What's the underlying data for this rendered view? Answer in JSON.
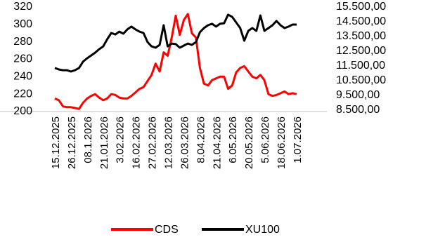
{
  "chart_data": {
    "type": "line",
    "categories": [
      "15.12.2025",
      null,
      null,
      null,
      "26.12.2025",
      null,
      null,
      null,
      "08.1.2026",
      null,
      null,
      null,
      "21.01.2026",
      null,
      null,
      null,
      "3.02.2026",
      null,
      null,
      null,
      "16.02.2026",
      null,
      null,
      null,
      "27.02.2026",
      null,
      null,
      null,
      "12.03.2026",
      null,
      null,
      null,
      "26.03.2026",
      null,
      null,
      null,
      "8.04.2026",
      null,
      null,
      null,
      "21.04.2026",
      null,
      null,
      null,
      "6.05.2026",
      null,
      null,
      null,
      "20.05.2026",
      null,
      null,
      null,
      "5.06.2026",
      null,
      null,
      null,
      "18.06.2026",
      null,
      null,
      null,
      "1.07.2026"
    ],
    "series": [
      {
        "name": "CDS",
        "color": "#ff0000",
        "values": [
          215,
          213,
          206,
          205,
          205,
          204,
          203,
          210,
          215,
          218,
          220,
          216,
          213,
          215,
          220,
          219,
          216,
          215,
          215,
          218,
          222,
          226,
          228,
          235,
          242,
          255,
          246,
          268,
          264,
          285,
          310,
          288,
          305,
          312,
          290,
          285,
          250,
          232,
          230,
          236,
          238,
          240,
          240,
          226,
          230,
          245,
          250,
          252,
          246,
          240,
          238,
          242,
          236,
          220,
          218,
          219,
          221,
          223,
          220,
          221,
          220
        ]
      },
      {
        "name": "XU100",
        "color": "#000000",
        "axis": "y2",
        "values": [
          11360,
          11260,
          11210,
          11210,
          11120,
          11210,
          11360,
          11790,
          12020,
          12210,
          12400,
          12640,
          12830,
          13310,
          13740,
          13640,
          13830,
          13690,
          13980,
          14170,
          13980,
          13830,
          13740,
          13120,
          12830,
          12740,
          12930,
          14260,
          12830,
          13020,
          12980,
          12740,
          12880,
          13020,
          12930,
          13120,
          13790,
          14070,
          14260,
          14360,
          14170,
          14360,
          14400,
          14980,
          14830,
          14450,
          14070,
          13210,
          13880,
          14070,
          13880,
          14930,
          13880,
          14070,
          14260,
          14550,
          14260,
          14070,
          14170,
          14310,
          14310
        ]
      }
    ],
    "ylim": [
      200,
      320
    ],
    "yticks": [
      200,
      220,
      240,
      260,
      280,
      300,
      320
    ],
    "y2lim": [
      8500,
      15500
    ],
    "y2ticks": [
      {
        "value": 8500,
        "label": "8.500,00"
      },
      {
        "value": 9500,
        "label": "9.500,00"
      },
      {
        "value": 10500,
        "label": "10.500,00"
      },
      {
        "value": 11500,
        "label": "11.500,00"
      },
      {
        "value": 12500,
        "label": "12.500,00"
      },
      {
        "value": 13500,
        "label": "13.500,00"
      },
      {
        "value": 14500,
        "label": "14.500,00"
      },
      {
        "value": 15500,
        "label": "15.500,00"
      }
    ],
    "legend": "bottom"
  }
}
